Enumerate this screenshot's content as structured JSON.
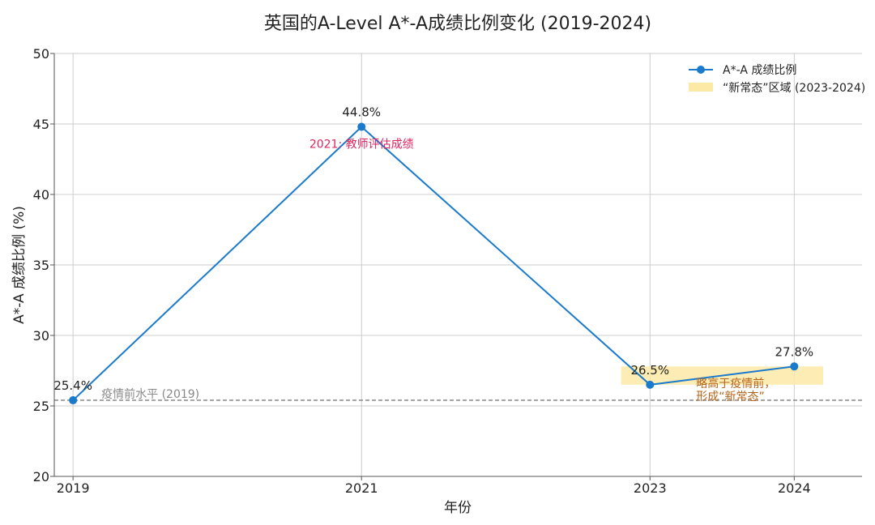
{
  "chart_data": {
    "type": "line",
    "title": "英国的A-Level A*-A成绩比例变化 (2019-2024)",
    "xlabel": "年份",
    "ylabel": "A*-A 成绩比例 (%)",
    "xlim": [
      2018.87,
      2024.47
    ],
    "ylim": [
      20,
      50
    ],
    "x_ticks": [
      "2019",
      "2021",
      "2023",
      "2024"
    ],
    "y_ticks": [
      "20",
      "25",
      "30",
      "35",
      "40",
      "45",
      "50"
    ],
    "grid": true,
    "legend_position": "top-right",
    "series": [
      {
        "name": "A*-A 成绩比例",
        "color": "#1a7acc",
        "x": [
          2019,
          2021,
          2023,
          2024
        ],
        "y": [
          25.4,
          44.8,
          26.5,
          27.8
        ],
        "labels": [
          "25.4%",
          "44.8%",
          "26.5%",
          "27.8%"
        ]
      }
    ],
    "baseline": {
      "y": 25.4,
      "label": "疫情前水平 (2019)",
      "color": "#888888"
    },
    "highlight_band": {
      "label": "“新常态”区域 (2023-2024)",
      "x": [
        2022.8,
        2024.2
      ],
      "y": [
        26.5,
        27.8
      ],
      "color": "#fde9a6"
    },
    "annotations": [
      {
        "text": "2021: 教师评估成绩",
        "x": 2021,
        "y": 43.6,
        "color": "#e0245e"
      },
      {
        "text": "略高于疫情前，",
        "x": 2023.32,
        "y": 26.6,
        "color": "#b8641b"
      },
      {
        "text": "形成“新常态”",
        "x": 2023.32,
        "y": 25.7,
        "color": "#b8641b"
      }
    ]
  }
}
